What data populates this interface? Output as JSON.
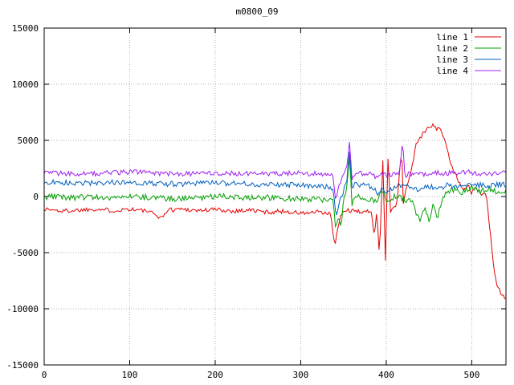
{
  "chart_data": {
    "type": "line",
    "title": "m0800_09",
    "xlabel": "",
    "ylabel": "",
    "xlim": [
      0,
      540
    ],
    "ylim": [
      -15000,
      15000
    ],
    "xticks": [
      0,
      100,
      200,
      300,
      400,
      500
    ],
    "yticks": [
      -15000,
      -10000,
      -5000,
      0,
      5000,
      10000,
      15000
    ],
    "grid": true,
    "grid_style": "dotted",
    "grid_color": "#b0b0b0",
    "border_color": "#000000",
    "background": "#ffffff",
    "legend_position": "top-right",
    "seed": 1337,
    "sample_step": 1.5,
    "series": [
      {
        "name": "line 1",
        "color": "#e60000",
        "noise": 200,
        "keypoints": [
          [
            0,
            -1100
          ],
          [
            20,
            -1300
          ],
          [
            40,
            -1200
          ],
          [
            60,
            -1100
          ],
          [
            80,
            -1250
          ],
          [
            100,
            -1100
          ],
          [
            120,
            -1300
          ],
          [
            138,
            -1900
          ],
          [
            144,
            -1200
          ],
          [
            160,
            -1100
          ],
          [
            180,
            -1250
          ],
          [
            200,
            -1150
          ],
          [
            220,
            -1300
          ],
          [
            240,
            -1200
          ],
          [
            260,
            -1400
          ],
          [
            280,
            -1300
          ],
          [
            300,
            -1500
          ],
          [
            320,
            -1400
          ],
          [
            335,
            -1600
          ],
          [
            340,
            -4500
          ],
          [
            344,
            -2500
          ],
          [
            348,
            -1500
          ],
          [
            355,
            -1200
          ],
          [
            365,
            -1400
          ],
          [
            375,
            -1300
          ],
          [
            383,
            -1500
          ],
          [
            386,
            -3500
          ],
          [
            389,
            -1000
          ],
          [
            392,
            -5500
          ],
          [
            396,
            3300
          ],
          [
            399,
            -5600
          ],
          [
            402,
            3500
          ],
          [
            405,
            -1500
          ],
          [
            408,
            -800
          ],
          [
            412,
            -1000
          ],
          [
            415,
            1500
          ],
          [
            418,
            4300
          ],
          [
            420,
            -500
          ],
          [
            425,
            1200
          ],
          [
            430,
            2500
          ],
          [
            435,
            4800
          ],
          [
            440,
            5200
          ],
          [
            445,
            5800
          ],
          [
            450,
            6200
          ],
          [
            455,
            6500
          ],
          [
            458,
            6000
          ],
          [
            462,
            6300
          ],
          [
            466,
            5500
          ],
          [
            470,
            4500
          ],
          [
            475,
            3000
          ],
          [
            480,
            2200
          ],
          [
            485,
            1200
          ],
          [
            490,
            700
          ],
          [
            495,
            1000
          ],
          [
            500,
            300
          ],
          [
            505,
            800
          ],
          [
            510,
            200
          ],
          [
            515,
            500
          ],
          [
            518,
            -500
          ],
          [
            522,
            -3500
          ],
          [
            526,
            -6500
          ],
          [
            530,
            -8000
          ],
          [
            535,
            -8700
          ],
          [
            540,
            -9000
          ]
        ]
      },
      {
        "name": "line 2",
        "color": "#00a000",
        "noise": 270,
        "keypoints": [
          [
            0,
            0
          ],
          [
            50,
            -100
          ],
          [
            100,
            0
          ],
          [
            150,
            -200
          ],
          [
            200,
            0
          ],
          [
            250,
            -100
          ],
          [
            300,
            -200
          ],
          [
            330,
            -300
          ],
          [
            338,
            -500
          ],
          [
            341,
            -3200
          ],
          [
            344,
            -1500
          ],
          [
            347,
            -2800
          ],
          [
            350,
            -500
          ],
          [
            354,
            800
          ],
          [
            357,
            3600
          ],
          [
            360,
            -700
          ],
          [
            365,
            0
          ],
          [
            380,
            -200
          ],
          [
            390,
            -400
          ],
          [
            395,
            500
          ],
          [
            400,
            -300
          ],
          [
            410,
            0
          ],
          [
            420,
            -200
          ],
          [
            430,
            -500
          ],
          [
            435,
            -1500
          ],
          [
            440,
            -2200
          ],
          [
            445,
            -1000
          ],
          [
            450,
            -2000
          ],
          [
            455,
            -800
          ],
          [
            460,
            -1800
          ],
          [
            465,
            -500
          ],
          [
            470,
            300
          ],
          [
            480,
            600
          ],
          [
            490,
            400
          ],
          [
            500,
            800
          ],
          [
            510,
            500
          ],
          [
            520,
            700
          ],
          [
            530,
            400
          ],
          [
            540,
            600
          ]
        ]
      },
      {
        "name": "line 3",
        "color": "#0060c0",
        "noise": 240,
        "keypoints": [
          [
            0,
            1300
          ],
          [
            50,
            1200
          ],
          [
            100,
            1300
          ],
          [
            150,
            1100
          ],
          [
            200,
            1200
          ],
          [
            250,
            1100
          ],
          [
            300,
            1000
          ],
          [
            330,
            900
          ],
          [
            338,
            600
          ],
          [
            341,
            -1800
          ],
          [
            345,
            -500
          ],
          [
            350,
            500
          ],
          [
            354,
            1500
          ],
          [
            357,
            4200
          ],
          [
            360,
            800
          ],
          [
            365,
            1100
          ],
          [
            375,
            1000
          ],
          [
            385,
            800
          ],
          [
            390,
            200
          ],
          [
            395,
            900
          ],
          [
            400,
            400
          ],
          [
            410,
            900
          ],
          [
            420,
            1000
          ],
          [
            430,
            800
          ],
          [
            440,
            600
          ],
          [
            450,
            900
          ],
          [
            460,
            700
          ],
          [
            470,
            1000
          ],
          [
            480,
            900
          ],
          [
            490,
            1100
          ],
          [
            500,
            900
          ],
          [
            510,
            1000
          ],
          [
            520,
            900
          ],
          [
            530,
            1100
          ],
          [
            540,
            1000
          ]
        ]
      },
      {
        "name": "line 4",
        "color": "#a020f0",
        "noise": 220,
        "keypoints": [
          [
            0,
            2100
          ],
          [
            50,
            2000
          ],
          [
            100,
            2200
          ],
          [
            150,
            2000
          ],
          [
            200,
            2100
          ],
          [
            250,
            2000
          ],
          [
            300,
            2100
          ],
          [
            330,
            2000
          ],
          [
            338,
            1800
          ],
          [
            341,
            -300
          ],
          [
            345,
            1200
          ],
          [
            350,
            1800
          ],
          [
            354,
            2500
          ],
          [
            357,
            4800
          ],
          [
            360,
            1500
          ],
          [
            365,
            2000
          ],
          [
            375,
            2100
          ],
          [
            385,
            1900
          ],
          [
            390,
            1500
          ],
          [
            395,
            2200
          ],
          [
            400,
            1900
          ],
          [
            410,
            2000
          ],
          [
            416,
            2200
          ],
          [
            419,
            5000
          ],
          [
            422,
            1500
          ],
          [
            425,
            2000
          ],
          [
            435,
            2100
          ],
          [
            445,
            2000
          ],
          [
            455,
            2200
          ],
          [
            465,
            2000
          ],
          [
            475,
            2100
          ],
          [
            485,
            2000
          ],
          [
            495,
            2200
          ],
          [
            505,
            2000
          ],
          [
            515,
            2100
          ],
          [
            525,
            2000
          ],
          [
            535,
            2200
          ],
          [
            540,
            2100
          ]
        ]
      }
    ]
  }
}
